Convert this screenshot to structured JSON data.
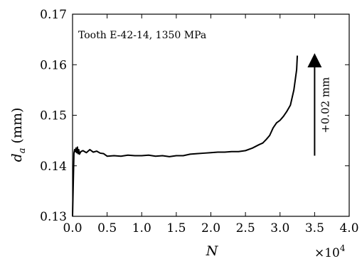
{
  "chart_data": {
    "type": "line",
    "annotation": "Tooth E-42-14, 1350 MPa",
    "xlabel": "N",
    "ylabel_base": "d",
    "ylabel_sub": "a",
    "ylabel_unit": "(mm)",
    "x_multiplier_base": "×10",
    "x_multiplier_exp": "4",
    "xlim": [
      0.0,
      4.0
    ],
    "ylim": [
      0.13,
      0.17
    ],
    "xticks": [
      "0.0",
      "0.5",
      "1.0",
      "1.5",
      "2.0",
      "2.5",
      "3.0",
      "3.5",
      "4.0"
    ],
    "yticks": [
      "0.13",
      "0.14",
      "0.15",
      "0.16",
      "0.17"
    ],
    "arrow_label": "+0.02 mm",
    "arrow": {
      "x": 3.5,
      "y_from": 0.142,
      "y_to": 0.162
    },
    "series": [
      {
        "color": "#000000",
        "x": [
          0.0,
          0.02,
          0.03,
          0.04,
          0.05,
          0.06,
          0.07,
          0.08,
          0.09,
          0.1,
          0.12,
          0.15,
          0.2,
          0.25,
          0.3,
          0.35,
          0.4,
          0.45,
          0.5,
          0.6,
          0.7,
          0.8,
          0.9,
          1.0,
          1.1,
          1.2,
          1.3,
          1.4,
          1.5,
          1.6,
          1.7,
          1.8,
          1.9,
          2.0,
          2.1,
          2.2,
          2.3,
          2.4,
          2.5,
          2.6,
          2.7,
          2.75,
          2.8,
          2.85,
          2.9,
          2.95,
          3.0,
          3.05,
          3.1,
          3.15,
          3.2,
          3.22,
          3.24,
          3.25
        ],
        "y": [
          0.13,
          0.1425,
          0.1432,
          0.1428,
          0.1435,
          0.1426,
          0.1437,
          0.1424,
          0.1432,
          0.1423,
          0.1428,
          0.143,
          0.1426,
          0.1432,
          0.1427,
          0.1429,
          0.1425,
          0.1424,
          0.1419,
          0.142,
          0.1419,
          0.1421,
          0.142,
          0.142,
          0.1421,
          0.1419,
          0.142,
          0.1418,
          0.142,
          0.142,
          0.1423,
          0.1424,
          0.1425,
          0.1426,
          0.1427,
          0.1427,
          0.1428,
          0.1428,
          0.143,
          0.1435,
          0.1442,
          0.1445,
          0.1452,
          0.146,
          0.1475,
          0.1485,
          0.149,
          0.1498,
          0.1508,
          0.152,
          0.155,
          0.157,
          0.159,
          0.1618
        ]
      }
    ]
  }
}
